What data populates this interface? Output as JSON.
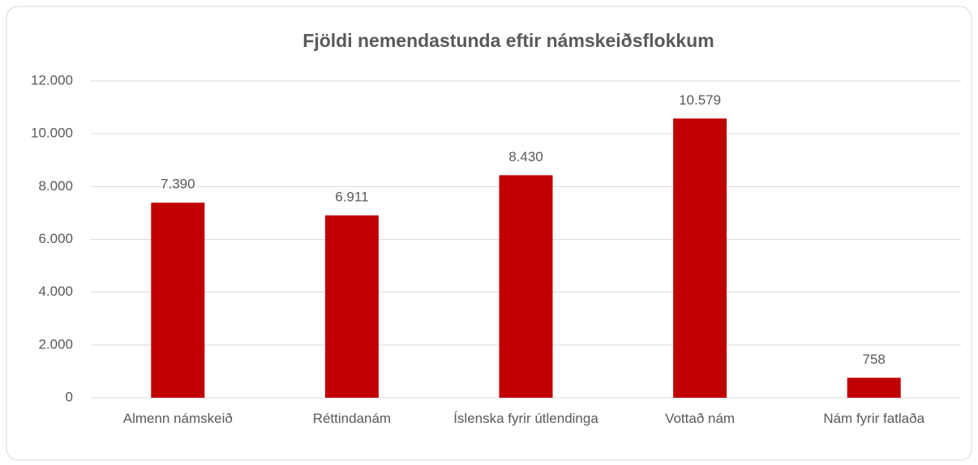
{
  "chart_data": {
    "type": "bar",
    "title": "Fjöldi nemendastunda eftir námskeiðsflokkum",
    "categories": [
      "Almenn námskeið",
      "Réttindanám",
      "Íslenska fyrir útlendinga",
      "Vottað nám",
      "Nám fyrir fatlaða"
    ],
    "values": [
      7390,
      6911,
      8430,
      10579,
      758
    ],
    "value_labels": [
      "7.390",
      "6.911",
      "8.430",
      "10.579",
      "758"
    ],
    "color": "#c00000",
    "ylim": [
      0,
      12000
    ],
    "yticks": [
      0,
      {
        "value": 2000,
        "label": "2.000"
      },
      {
        "value": 4000,
        "label": "4.000"
      },
      {
        "value": 6000,
        "label": "6.000"
      },
      {
        "value": 8000,
        "label": "8.000"
      },
      {
        "value": 10000,
        "label": "10.000"
      },
      {
        "value": 12000,
        "label": "12.000"
      }
    ],
    "grid": true
  }
}
